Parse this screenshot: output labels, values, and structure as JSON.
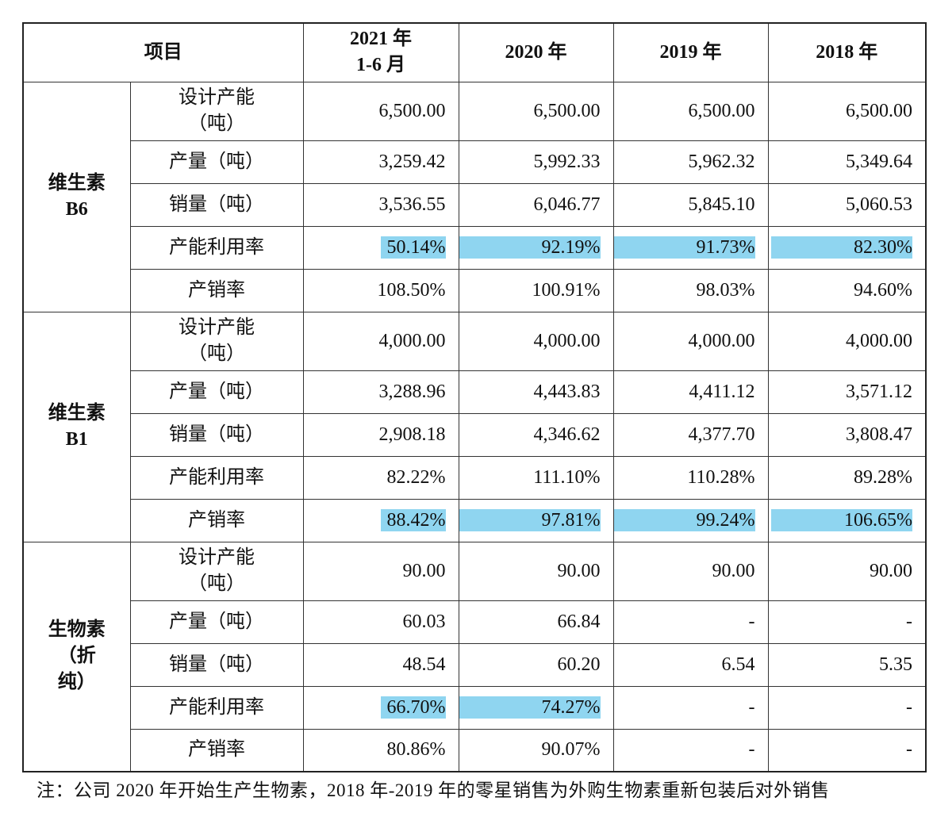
{
  "table": {
    "header": {
      "item": "项目",
      "periods": [
        "2021 年\n1-6 月",
        "2020 年",
        "2019 年",
        "2018 年"
      ]
    },
    "groups": [
      {
        "name": "维生素\nB6",
        "rows": [
          {
            "label": "设计产能\n（吨）",
            "values": [
              "6,500.00",
              "6,500.00",
              "6,500.00",
              "6,500.00"
            ]
          },
          {
            "label": "产量（吨）",
            "values": [
              "3,259.42",
              "5,992.33",
              "5,962.32",
              "5,349.64"
            ]
          },
          {
            "label": "销量（吨）",
            "values": [
              "3,536.55",
              "6,046.77",
              "5,845.10",
              "5,060.53"
            ]
          },
          {
            "label": "产能利用率",
            "values": [
              "50.14%",
              "92.19%",
              "91.73%",
              "82.30%"
            ],
            "highlight": [
              true,
              true,
              true,
              true
            ]
          },
          {
            "label": "产销率",
            "values": [
              "108.50%",
              "100.91%",
              "98.03%",
              "94.60%"
            ]
          }
        ]
      },
      {
        "name": "维生素\nB1",
        "rows": [
          {
            "label": "设计产能\n（吨）",
            "values": [
              "4,000.00",
              "4,000.00",
              "4,000.00",
              "4,000.00"
            ]
          },
          {
            "label": "产量（吨）",
            "values": [
              "3,288.96",
              "4,443.83",
              "4,411.12",
              "3,571.12"
            ]
          },
          {
            "label": "销量（吨）",
            "values": [
              "2,908.18",
              "4,346.62",
              "4,377.70",
              "3,808.47"
            ]
          },
          {
            "label": "产能利用率",
            "values": [
              "82.22%",
              "111.10%",
              "110.28%",
              "89.28%"
            ]
          },
          {
            "label": "产销率",
            "values": [
              "88.42%",
              "97.81%",
              "99.24%",
              "106.65%"
            ],
            "highlight": [
              true,
              true,
              true,
              true
            ]
          }
        ]
      },
      {
        "name": "生物素\n（折\n纯）",
        "rows": [
          {
            "label": "设计产能\n（吨）",
            "values": [
              "90.00",
              "90.00",
              "90.00",
              "90.00"
            ]
          },
          {
            "label": "产量（吨）",
            "values": [
              "60.03",
              "66.84",
              "-",
              "-"
            ]
          },
          {
            "label": "销量（吨）",
            "values": [
              "48.54",
              "60.20",
              "6.54",
              "5.35"
            ]
          },
          {
            "label": "产能利用率",
            "values": [
              "66.70%",
              "74.27%",
              "-",
              "-"
            ],
            "highlight": [
              true,
              true,
              false,
              false
            ]
          },
          {
            "label": "产销率",
            "values": [
              "80.86%",
              "90.07%",
              "-",
              "-"
            ]
          }
        ]
      }
    ]
  },
  "note": "注：公司 2020 年开始生产生物素，2018 年-2019 年的零星销售为外购生物素重新包装后对外销售"
}
